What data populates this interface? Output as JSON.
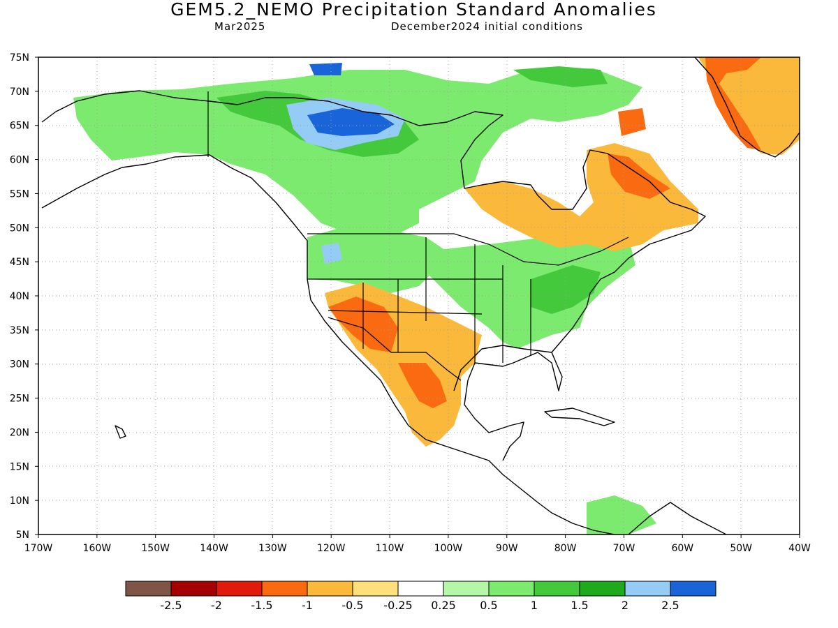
{
  "title": "GEM5.2_NEMO Precipitation Standard Anomalies",
  "valid_month": "Mar2025",
  "initial_conditions": "December2024 initial conditions",
  "lat_labels": [
    "75N",
    "70N",
    "65N",
    "60N",
    "55N",
    "50N",
    "45N",
    "40N",
    "35N",
    "30N",
    "25N",
    "20N",
    "15N",
    "10N",
    "5N"
  ],
  "lon_labels": [
    "170W",
    "160W",
    "150W",
    "140W",
    "130W",
    "120W",
    "110W",
    "100W",
    "90W",
    "80W",
    "70W",
    "60W",
    "50W",
    "40W"
  ],
  "colorbar": {
    "colors": [
      "#7f5548",
      "#a50000",
      "#e01b0b",
      "#fa6a10",
      "#fbb93c",
      "#fee07a",
      "#ffffff",
      "#b4f7a6",
      "#7cea6e",
      "#44c83c",
      "#1faa1e",
      "#94ccf5",
      "#1864d8"
    ],
    "labels": [
      "-2.5",
      "-2",
      "-1.5",
      "-1",
      "-0.5",
      "-0.25",
      "0.25",
      "0.5",
      "1",
      "1.5",
      "2",
      "2.5"
    ]
  }
}
